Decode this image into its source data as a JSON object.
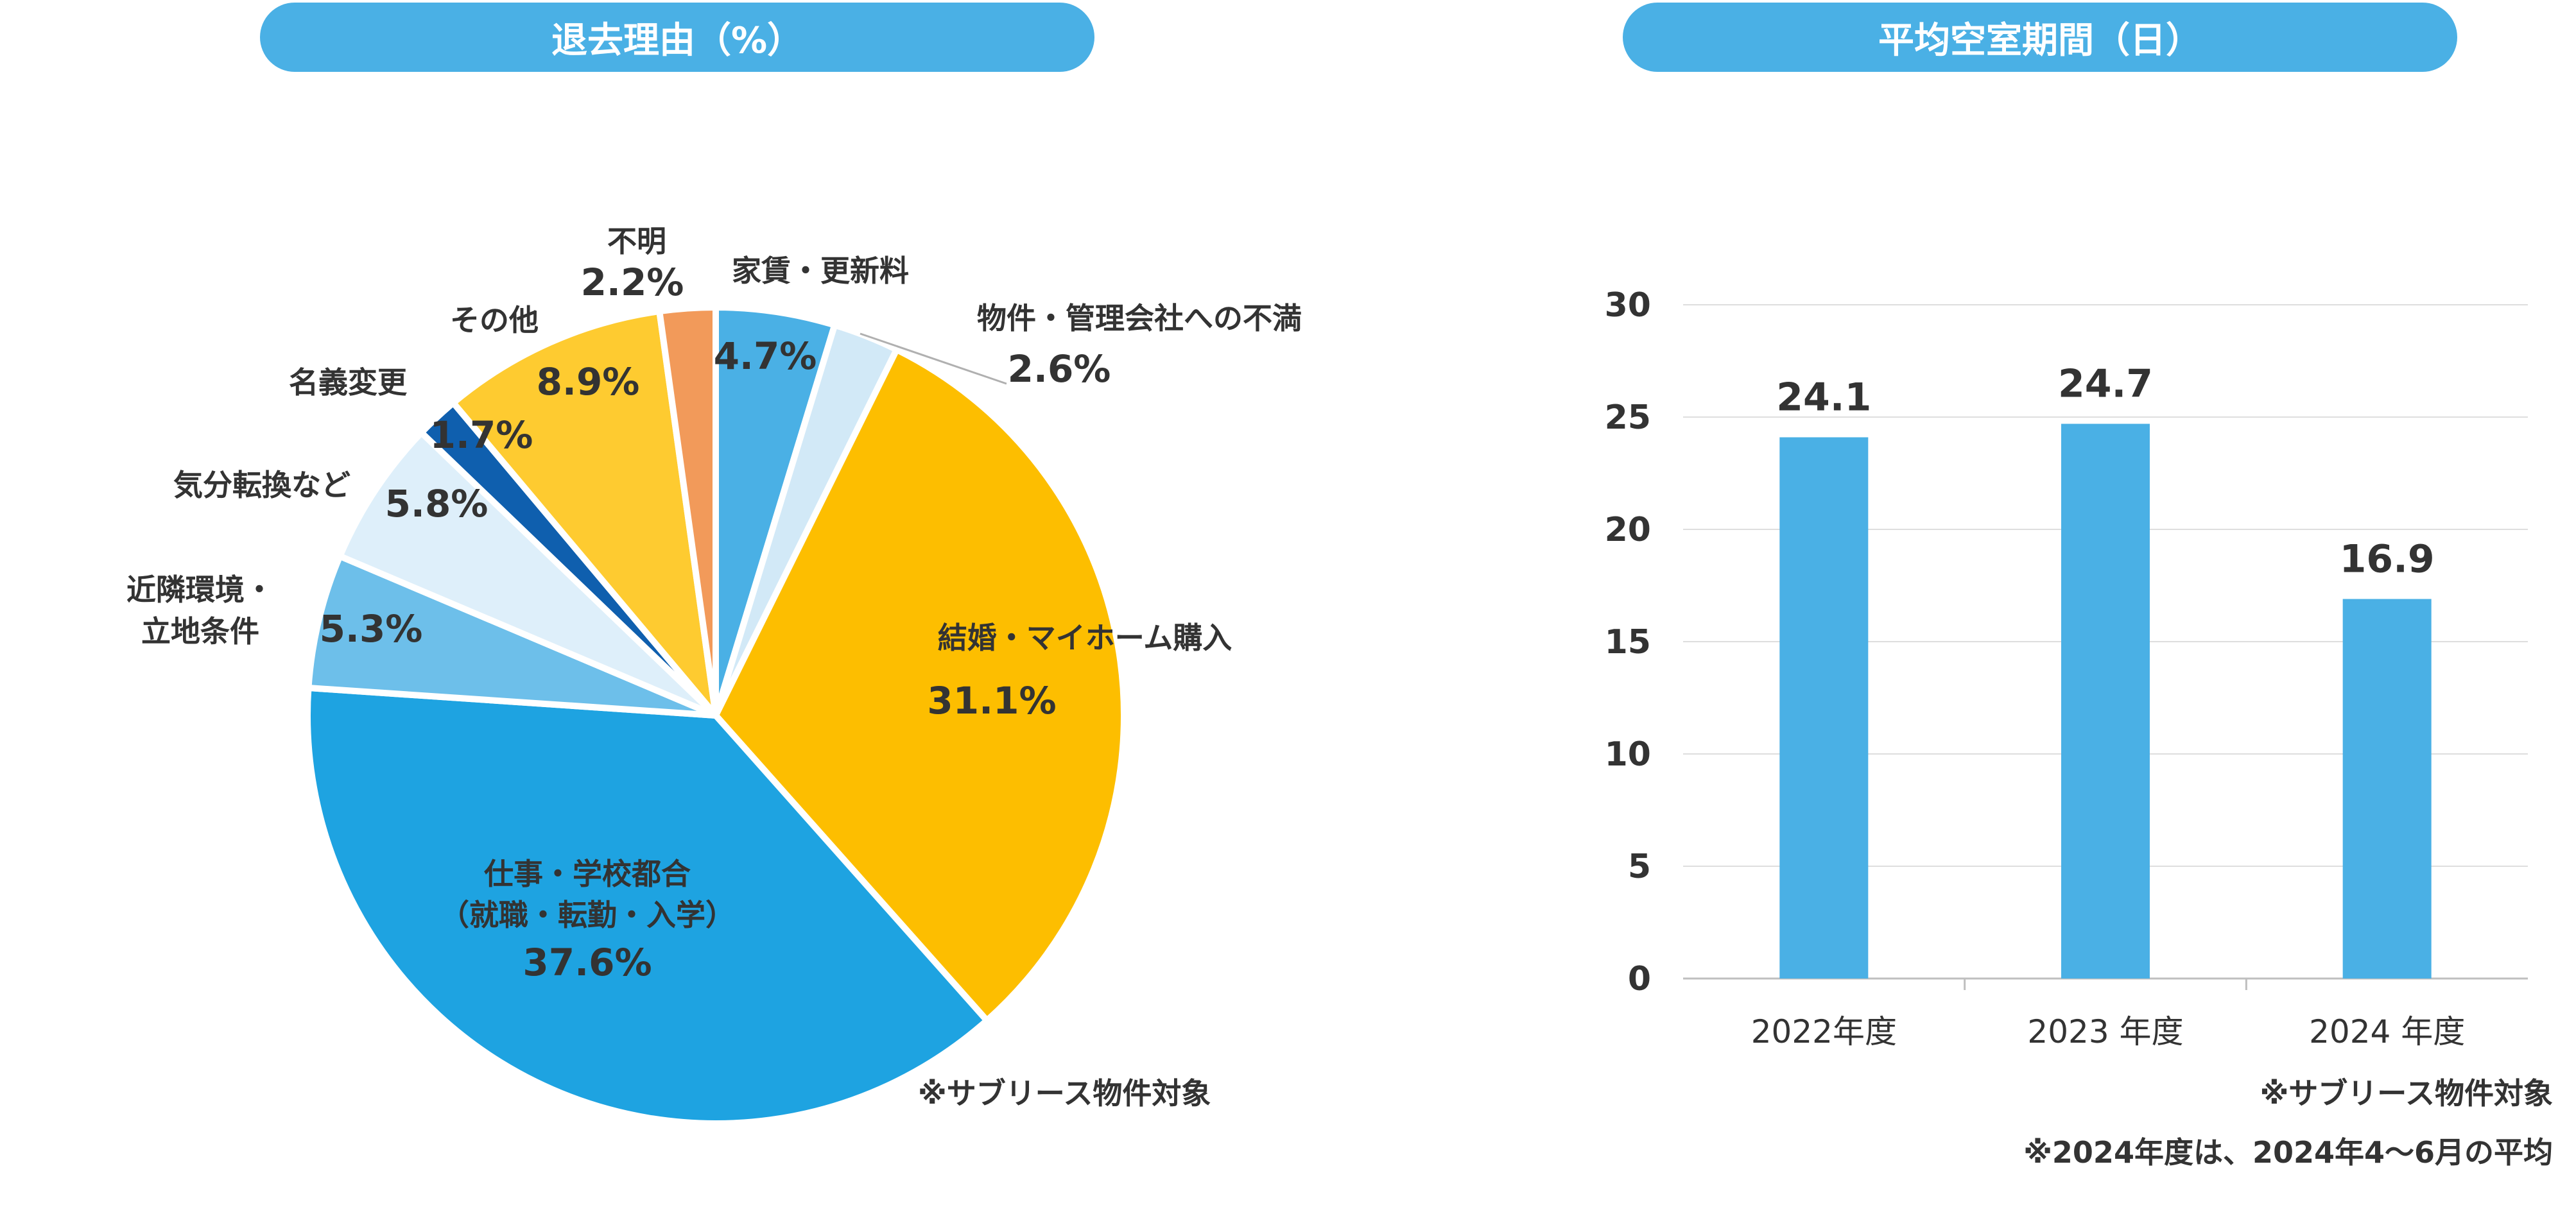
{
  "chart_data": [
    {
      "type": "pie",
      "title": "退去理由（%）",
      "unit": "%",
      "slices": [
        {
          "label": "家賃・更新料",
          "value": 4.7,
          "value_label": "4.7%",
          "color": "#4ab0e5"
        },
        {
          "label": "物件・管理会社への不満",
          "value": 2.6,
          "value_label": "2.6%",
          "color": "#d2e9f7"
        },
        {
          "label": "結婚・マイホーム購入",
          "value": 31.1,
          "value_label": "31.1%",
          "color": "#fdbe00"
        },
        {
          "label": "仕事・学校都合",
          "label2": "（就職・転勤・入学）",
          "value": 37.6,
          "value_label": "37.6%",
          "color": "#1ea3e1"
        },
        {
          "label": "近隣環境・",
          "label2": "立地条件",
          "value": 5.3,
          "value_label": "5.3%",
          "color": "#6dbfea"
        },
        {
          "label": "気分転換など",
          "value": 5.8,
          "value_label": "5.8%",
          "color": "#deeffa"
        },
        {
          "label": "名義変更",
          "value": 1.7,
          "value_label": "1.7%",
          "color": "#0f5fae"
        },
        {
          "label": "その他",
          "value": 8.9,
          "value_label": "8.9%",
          "color": "#fecb30"
        },
        {
          "label": "不明",
          "value": 2.2,
          "value_label": "2.2%",
          "color": "#f29a5a"
        }
      ],
      "note": "※サブリース物件対象"
    },
    {
      "type": "bar",
      "title": "平均空室期間（日）",
      "categories": [
        "2022年度",
        "2023 年度",
        "2024 年度"
      ],
      "values": [
        24.1,
        24.7,
        16.9
      ],
      "value_labels": [
        "24.1",
        "24.7",
        "16.9"
      ],
      "ylim": [
        0,
        30
      ],
      "yticks": [
        0,
        5,
        10,
        15,
        20,
        25,
        30
      ],
      "grid": true,
      "bar_color": "#4ab0e5",
      "notes": [
        "※サブリース物件対象",
        "※2024年度は、2024年4〜6月の平均"
      ]
    }
  ]
}
